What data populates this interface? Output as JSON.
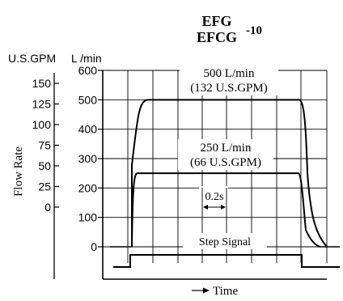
{
  "chart_data": {
    "type": "line",
    "title": "EFG",
    "title_line2": "EFCG",
    "title_superscript": "-10",
    "ylabel": "Flow Rate",
    "xlabel": "Time",
    "left_axis_unit": "U.S.GPM",
    "right_axis_unit": "L /min",
    "left_ticks": [
      "150",
      "125",
      "100",
      "75",
      "50",
      "25",
      "0"
    ],
    "right_ticks": [
      "600",
      "500",
      "400",
      "300",
      "200",
      "100",
      "0"
    ],
    "ylim": [
      0,
      600
    ],
    "grid": true,
    "series": [
      {
        "name": "500 L/min",
        "name_line2": "(132 U.S.GPM)",
        "plateau": 500
      },
      {
        "name": "250 L/min",
        "name_line2": "(66 U.S.GPM)",
        "plateau": 250
      }
    ],
    "step_signal_label": "Step Signal",
    "time_scale_label": "0.2s"
  }
}
